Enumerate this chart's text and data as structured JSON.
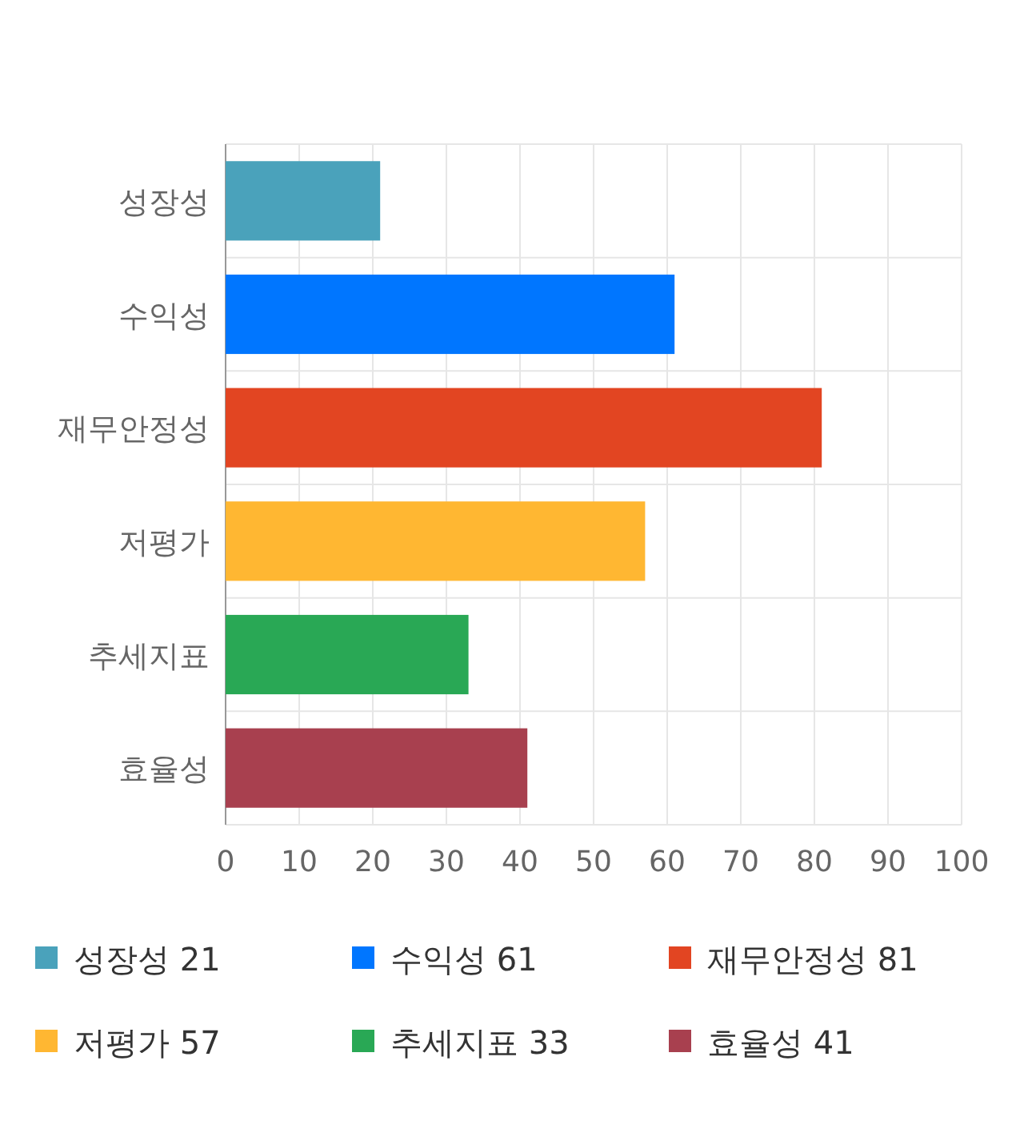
{
  "chart_data": {
    "type": "bar",
    "orientation": "horizontal",
    "stacked": true,
    "categories": [
      "성장성",
      "수익성",
      "재무안정성",
      "저평가",
      "추세지표",
      "효율성"
    ],
    "series": [
      {
        "name": "성장성 21",
        "color": "#4aa2bb",
        "values": [
          21,
          null,
          null,
          null,
          null,
          null
        ]
      },
      {
        "name": "수익성 61",
        "color": "#0076ff",
        "values": [
          null,
          61,
          null,
          null,
          null,
          null
        ]
      },
      {
        "name": "재무안정성 81",
        "color": "#e24522",
        "values": [
          null,
          null,
          81,
          null,
          null,
          null
        ]
      },
      {
        "name": "저평가 57",
        "color": "#ffb732",
        "values": [
          null,
          null,
          null,
          57,
          null,
          null
        ]
      },
      {
        "name": "추세지표 33",
        "color": "#29a855",
        "values": [
          null,
          null,
          null,
          null,
          33,
          null
        ]
      },
      {
        "name": "효율성 41",
        "color": "#a8404f",
        "values": [
          null,
          null,
          null,
          null,
          null,
          41
        ]
      }
    ],
    "xlim": [
      0,
      100
    ],
    "xticks": [
      0,
      10,
      20,
      30,
      40,
      50,
      60,
      70,
      80,
      90,
      100
    ],
    "grid": true,
    "legend": "bottom"
  }
}
